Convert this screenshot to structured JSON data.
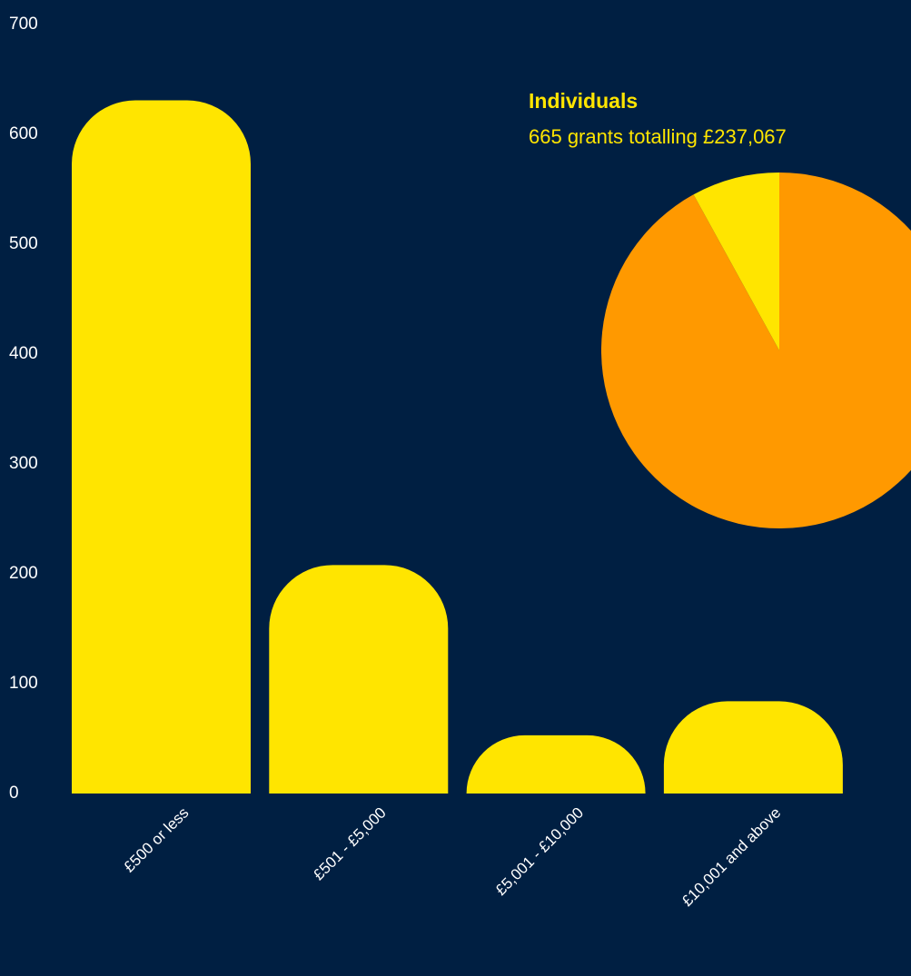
{
  "chart_data": [
    {
      "type": "bar",
      "categories": [
        "£500 or less",
        "£501 - £5,000",
        "£5,001 - £10,000",
        "£10,001 and above"
      ],
      "values": [
        631,
        208,
        53,
        84
      ],
      "color": "#ffe500",
      "ylim": [
        0,
        700
      ],
      "yticks": [
        0,
        100,
        200,
        300,
        400,
        500,
        600,
        700
      ],
      "grid": false
    },
    {
      "type": "pie",
      "title": "Individuals",
      "subtitle": "665 grants totalling £237,067",
      "values": [
        92,
        8
      ],
      "colors": [
        "#ff9900",
        "#ffe500"
      ]
    }
  ]
}
